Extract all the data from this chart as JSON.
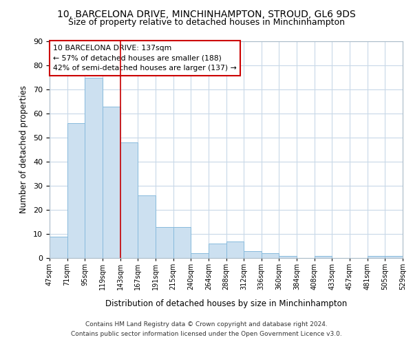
{
  "title_line1": "10, BARCELONA DRIVE, MINCHINHAMPTON, STROUD, GL6 9DS",
  "title_line2": "Size of property relative to detached houses in Minchinhampton",
  "xlabel": "Distribution of detached houses by size in Minchinhampton",
  "ylabel": "Number of detached properties",
  "bar_values": [
    9,
    56,
    75,
    63,
    48,
    26,
    13,
    13,
    2,
    6,
    7,
    3,
    2,
    1,
    0,
    1,
    0,
    0,
    1,
    1
  ],
  "bar_labels": [
    "47sqm",
    "71sqm",
    "95sqm",
    "119sqm",
    "143sqm",
    "167sqm",
    "191sqm",
    "215sqm",
    "240sqm",
    "264sqm",
    "288sqm",
    "312sqm",
    "336sqm",
    "360sqm",
    "384sqm",
    "408sqm",
    "433sqm",
    "457sqm",
    "481sqm",
    "505sqm",
    "529sqm"
  ],
  "bar_color": "#cce0f0",
  "bar_edge_color": "#88bbdd",
  "background_color": "#ffffff",
  "plot_bg_color": "#ffffff",
  "grid_color": "#c8d8e8",
  "annotation_box_text": "10 BARCELONA DRIVE: 137sqm\n← 57% of detached houses are smaller (188)\n42% of semi-detached houses are larger (137) →",
  "annotation_box_edge_color": "#cc0000",
  "vline_x_index": 4,
  "vline_color": "#cc0000",
  "ylim": [
    0,
    90
  ],
  "yticks": [
    0,
    10,
    20,
    30,
    40,
    50,
    60,
    70,
    80,
    90
  ],
  "footer_line1": "Contains HM Land Registry data © Crown copyright and database right 2024.",
  "footer_line2": "Contains public sector information licensed under the Open Government Licence v3.0."
}
